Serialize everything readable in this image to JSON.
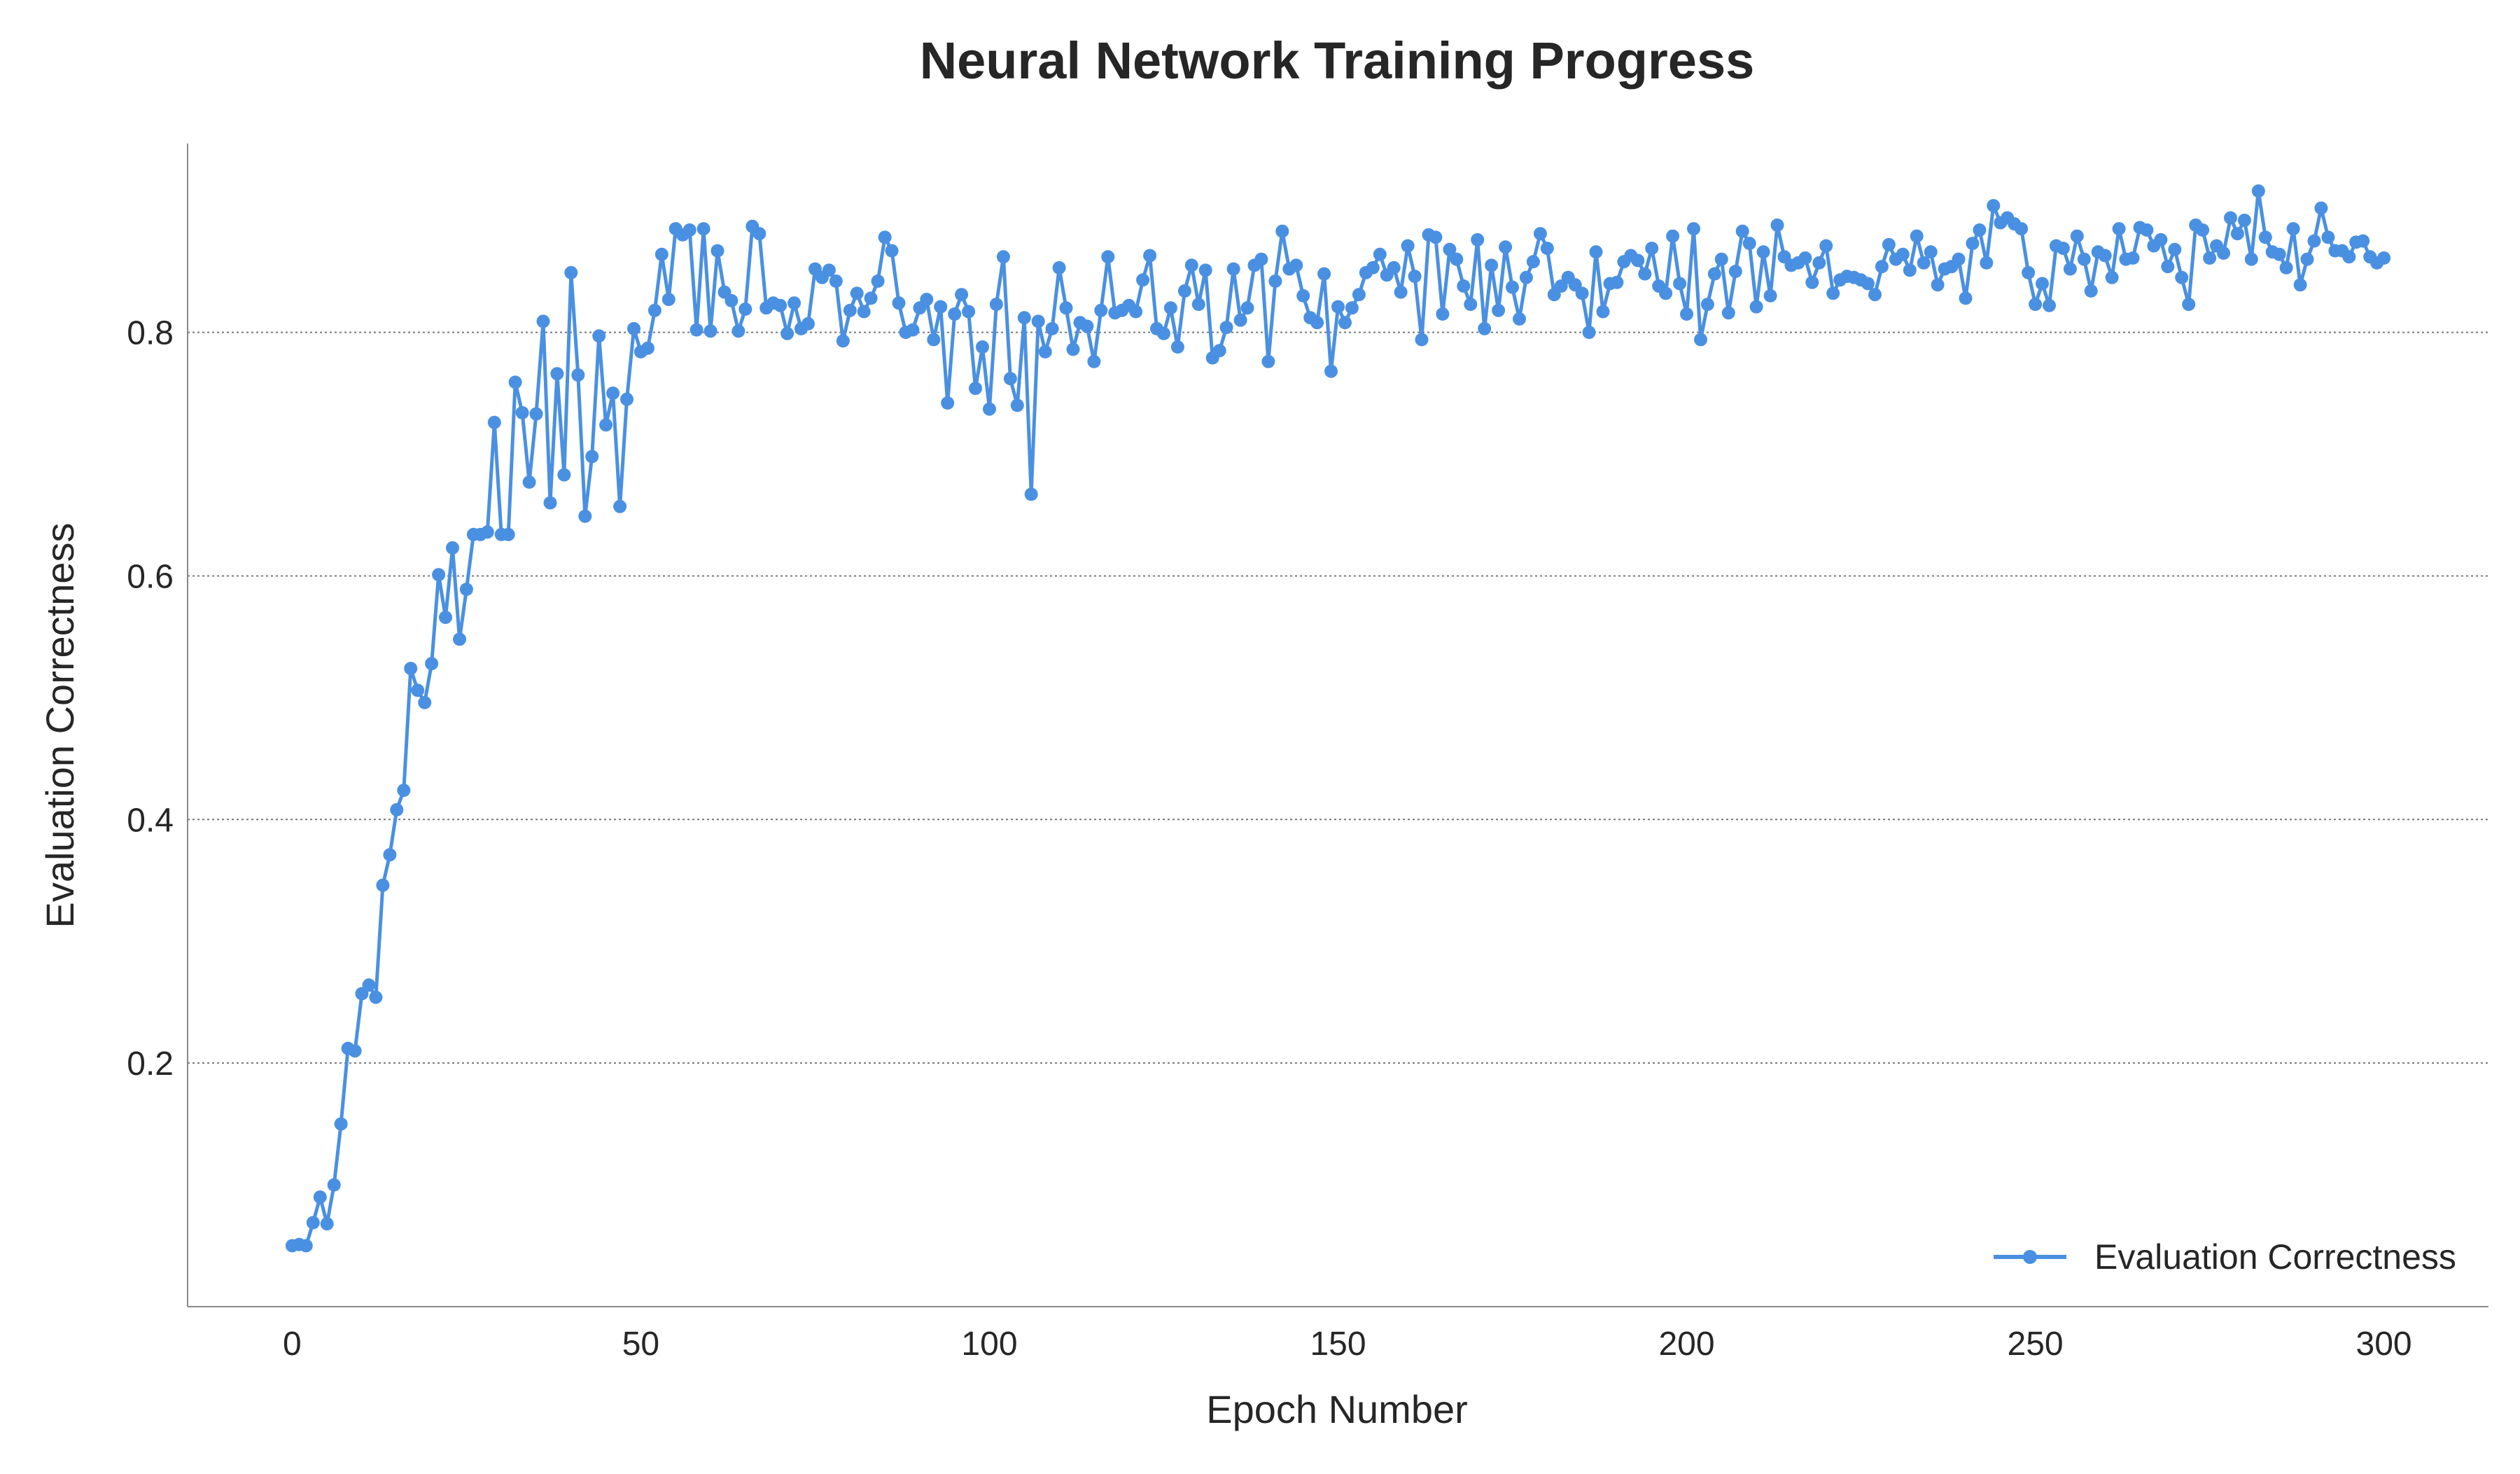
{
  "chart_data": {
    "type": "line",
    "title": "Neural Network Training Progress",
    "xlabel": "Epoch Number",
    "ylabel": "Evaluation Correctness",
    "xlim": [
      -15,
      315
    ],
    "ylim": [
      0.0,
      0.955
    ],
    "xticks": [
      0,
      50,
      100,
      150,
      200,
      250,
      300
    ],
    "yticks": [
      0.2,
      0.4,
      0.6,
      0.8
    ],
    "ytick_labels": [
      "0.2",
      "0.4",
      "0.6",
      "0.8"
    ],
    "grid": "horizontal dotted",
    "legend": {
      "position": "bottom-right",
      "entries": [
        "Evaluation Correctness"
      ]
    },
    "series": [
      {
        "name": "Evaluation Correctness",
        "color": "#4a90e2",
        "marker": "circle",
        "x_start": 0,
        "x_step": 1,
        "values": [
          0.05,
          0.051,
          0.05,
          0.069,
          0.09,
          0.068,
          0.1,
          0.15,
          0.212,
          0.21,
          0.257,
          0.264,
          0.254,
          0.346,
          0.371,
          0.408,
          0.424,
          0.524,
          0.506,
          0.496,
          0.528,
          0.601,
          0.566,
          0.623,
          0.548,
          0.589,
          0.634,
          0.634,
          0.636,
          0.726,
          0.634,
          0.634,
          0.759,
          0.734,
          0.677,
          0.733,
          0.809,
          0.66,
          0.766,
          0.683,
          0.849,
          0.765,
          0.649,
          0.698,
          0.797,
          0.724,
          0.75,
          0.657,
          0.745,
          0.803,
          0.784,
          0.787,
          0.818,
          0.864,
          0.827,
          0.885,
          0.88,
          0.884,
          0.802,
          0.885,
          0.801,
          0.867,
          0.833,
          0.826,
          0.801,
          0.819,
          0.887,
          0.881,
          0.82,
          0.824,
          0.822,
          0.799,
          0.824,
          0.803,
          0.807,
          0.852,
          0.845,
          0.851,
          0.842,
          0.793,
          0.818,
          0.832,
          0.817,
          0.828,
          0.842,
          0.878,
          0.867,
          0.824,
          0.8,
          0.802,
          0.82,
          0.827,
          0.794,
          0.821,
          0.742,
          0.815,
          0.831,
          0.817,
          0.754,
          0.788,
          0.737,
          0.823,
          0.862,
          0.762,
          0.74,
          0.812,
          0.667,
          0.809,
          0.784,
          0.803,
          0.853,
          0.82,
          0.786,
          0.808,
          0.805,
          0.776,
          0.818,
          0.862,
          0.816,
          0.818,
          0.822,
          0.817,
          0.843,
          0.863,
          0.803,
          0.799,
          0.82,
          0.788,
          0.834,
          0.855,
          0.823,
          0.851,
          0.779,
          0.785,
          0.804,
          0.852,
          0.81,
          0.82,
          0.855,
          0.86,
          0.776,
          0.842,
          0.883,
          0.852,
          0.855,
          0.83,
          0.812,
          0.808,
          0.848,
          0.768,
          0.821,
          0.808,
          0.82,
          0.831,
          0.849,
          0.853,
          0.864,
          0.847,
          0.853,
          0.833,
          0.871,
          0.846,
          0.794,
          0.88,
          0.878,
          0.815,
          0.868,
          0.86,
          0.838,
          0.823,
          0.876,
          0.803,
          0.855,
          0.818,
          0.87,
          0.837,
          0.811,
          0.845,
          0.858,
          0.881,
          0.869,
          0.831,
          0.838,
          0.845,
          0.839,
          0.832,
          0.8,
          0.866,
          0.817,
          0.84,
          0.841,
          0.858,
          0.863,
          0.859,
          0.848,
          0.869,
          0.838,
          0.832,
          0.879,
          0.84,
          0.815,
          0.885,
          0.794,
          0.823,
          0.848,
          0.86,
          0.816,
          0.85,
          0.883,
          0.873,
          0.821,
          0.866,
          0.83,
          0.888,
          0.862,
          0.855,
          0.857,
          0.861,
          0.841,
          0.857,
          0.871,
          0.832,
          0.843,
          0.846,
          0.845,
          0.843,
          0.84,
          0.831,
          0.854,
          0.872,
          0.86,
          0.864,
          0.851,
          0.879,
          0.857,
          0.866,
          0.839,
          0.852,
          0.854,
          0.86,
          0.828,
          0.873,
          0.884,
          0.857,
          0.904,
          0.89,
          0.894,
          0.889,
          0.885,
          0.849,
          0.823,
          0.84,
          0.822,
          0.871,
          0.869,
          0.852,
          0.879,
          0.86,
          0.834,
          0.866,
          0.863,
          0.845,
          0.885,
          0.86,
          0.861,
          0.886,
          0.884,
          0.871,
          0.876,
          0.854,
          0.868,
          0.845,
          0.823,
          0.888,
          0.884,
          0.861,
          0.871,
          0.865,
          0.894,
          0.881,
          0.892,
          0.86,
          0.916,
          0.878,
          0.866,
          0.864,
          0.853,
          0.885,
          0.839,
          0.86,
          0.875,
          0.902,
          0.878,
          0.867,
          0.867,
          0.862,
          0.874,
          0.875,
          0.862,
          0.857,
          0.861
        ]
      }
    ]
  },
  "colors": {
    "series": "#4a90e2",
    "text": "#262626",
    "axis": "#888888",
    "grid": "#777777"
  }
}
